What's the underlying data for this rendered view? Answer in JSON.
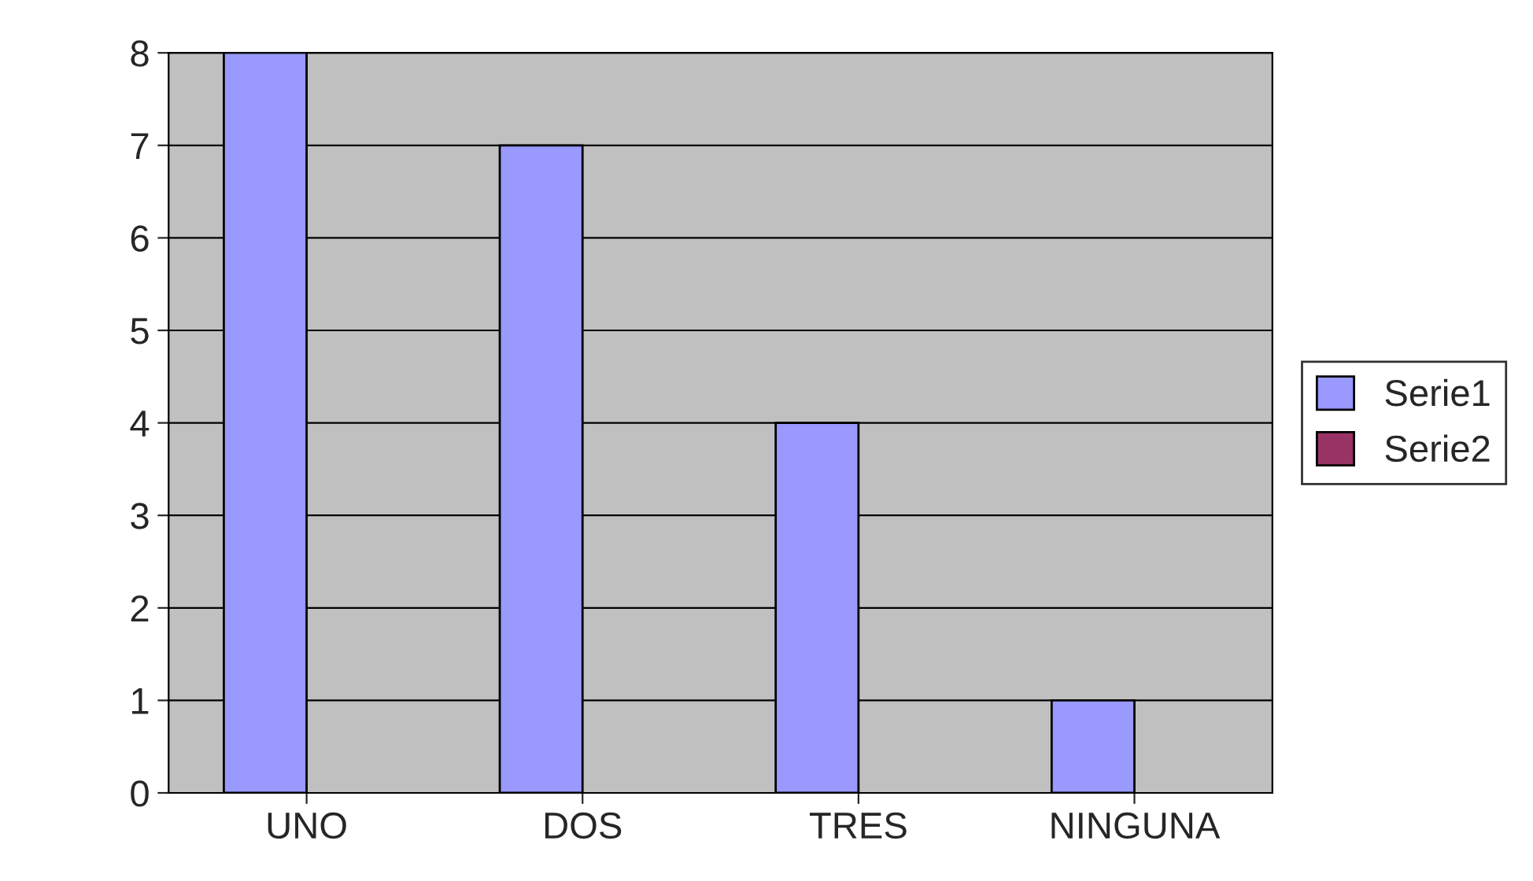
{
  "chart_data": {
    "type": "bar",
    "categories": [
      "UNO",
      "DOS",
      "TRES",
      "NINGUNA"
    ],
    "series": [
      {
        "name": "Serie1",
        "color": "#9999ff",
        "values": [
          8,
          7,
          4,
          1
        ]
      },
      {
        "name": "Serie2",
        "color": "#993366",
        "values": [
          null,
          null,
          null,
          null
        ]
      }
    ],
    "ylim": [
      0,
      8
    ],
    "yticks": [
      0,
      1,
      2,
      3,
      4,
      5,
      6,
      7,
      8
    ],
    "grid": "y",
    "legend": "right"
  }
}
